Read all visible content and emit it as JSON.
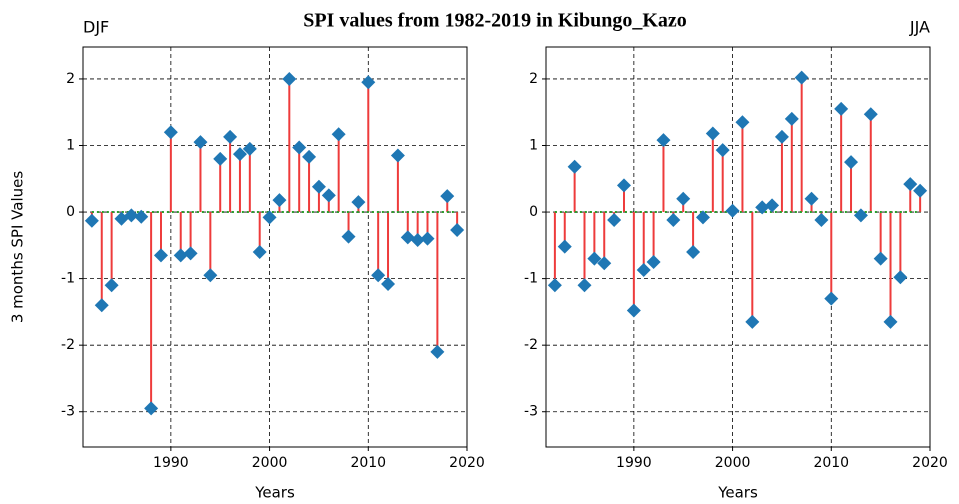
{
  "title": "SPI values from 1982-2019 in Kibungo_Kazo",
  "chart_data": [
    {
      "type": "stem",
      "title": "DJF",
      "title_loc": "left",
      "xlabel": "Years",
      "ylabel": "3 months SPI Values",
      "x": [
        1982,
        1983,
        1984,
        1985,
        1986,
        1987,
        1988,
        1989,
        1990,
        1991,
        1992,
        1993,
        1994,
        1995,
        1996,
        1997,
        1998,
        1999,
        2000,
        2001,
        2002,
        2003,
        2004,
        2005,
        2006,
        2007,
        2008,
        2009,
        2010,
        2011,
        2012,
        2013,
        2014,
        2015,
        2016,
        2017,
        2018,
        2019
      ],
      "values": [
        -0.13,
        -1.4,
        -1.1,
        -0.1,
        -0.05,
        -0.07,
        -2.95,
        -0.65,
        1.2,
        -0.65,
        -0.62,
        1.05,
        -0.95,
        0.8,
        1.13,
        0.87,
        0.95,
        -0.6,
        -0.08,
        0.18,
        2.0,
        0.97,
        0.83,
        0.38,
        0.25,
        1.17,
        -0.37,
        0.15,
        1.95,
        -0.95,
        -1.08,
        0.85,
        -0.38,
        -0.42,
        -0.4,
        -2.1,
        0.24,
        -0.27
      ],
      "stem_color": "#ee3b3b",
      "marker_color": "#1f77b4",
      "baseline_color": "#2ca02c",
      "xlim": [
        1981.1,
        2020
      ],
      "xticks": [
        1990,
        2000,
        2010,
        2020
      ],
      "ylim": [
        -3.53,
        2.48
      ],
      "yticks": [
        -3,
        -2,
        -1,
        0,
        1,
        2
      ],
      "grid": true
    },
    {
      "type": "stem",
      "title": "JJA",
      "title_loc": "right",
      "xlabel": "Years",
      "x": [
        1982,
        1983,
        1984,
        1985,
        1986,
        1987,
        1988,
        1989,
        1990,
        1991,
        1992,
        1993,
        1994,
        1995,
        1996,
        1997,
        1998,
        1999,
        2000,
        2001,
        2002,
        2003,
        2004,
        2005,
        2006,
        2007,
        2008,
        2009,
        2010,
        2011,
        2012,
        2013,
        2014,
        2015,
        2016,
        2017,
        2018,
        2019
      ],
      "values": [
        -1.1,
        -0.52,
        0.68,
        -1.1,
        -0.7,
        -0.77,
        -0.12,
        0.4,
        -1.48,
        -0.87,
        -0.75,
        1.08,
        -0.12,
        0.2,
        -0.6,
        -0.08,
        1.18,
        0.93,
        0.02,
        1.35,
        -1.65,
        0.07,
        0.1,
        1.13,
        1.4,
        2.02,
        0.2,
        -0.12,
        -1.3,
        1.55,
        0.75,
        -0.05,
        1.47,
        -0.7,
        -1.65,
        -0.98,
        0.42,
        0.32
      ],
      "stem_color": "#ee3b3b",
      "marker_color": "#1f77b4",
      "baseline_color": "#2ca02c",
      "xlim": [
        1981.1,
        2020
      ],
      "xticks": [
        1990,
        2000,
        2010,
        2020
      ],
      "ylim": [
        -3.53,
        2.48
      ],
      "yticks": [
        -3,
        -2,
        -1,
        0,
        1,
        2
      ],
      "grid": true
    }
  ]
}
